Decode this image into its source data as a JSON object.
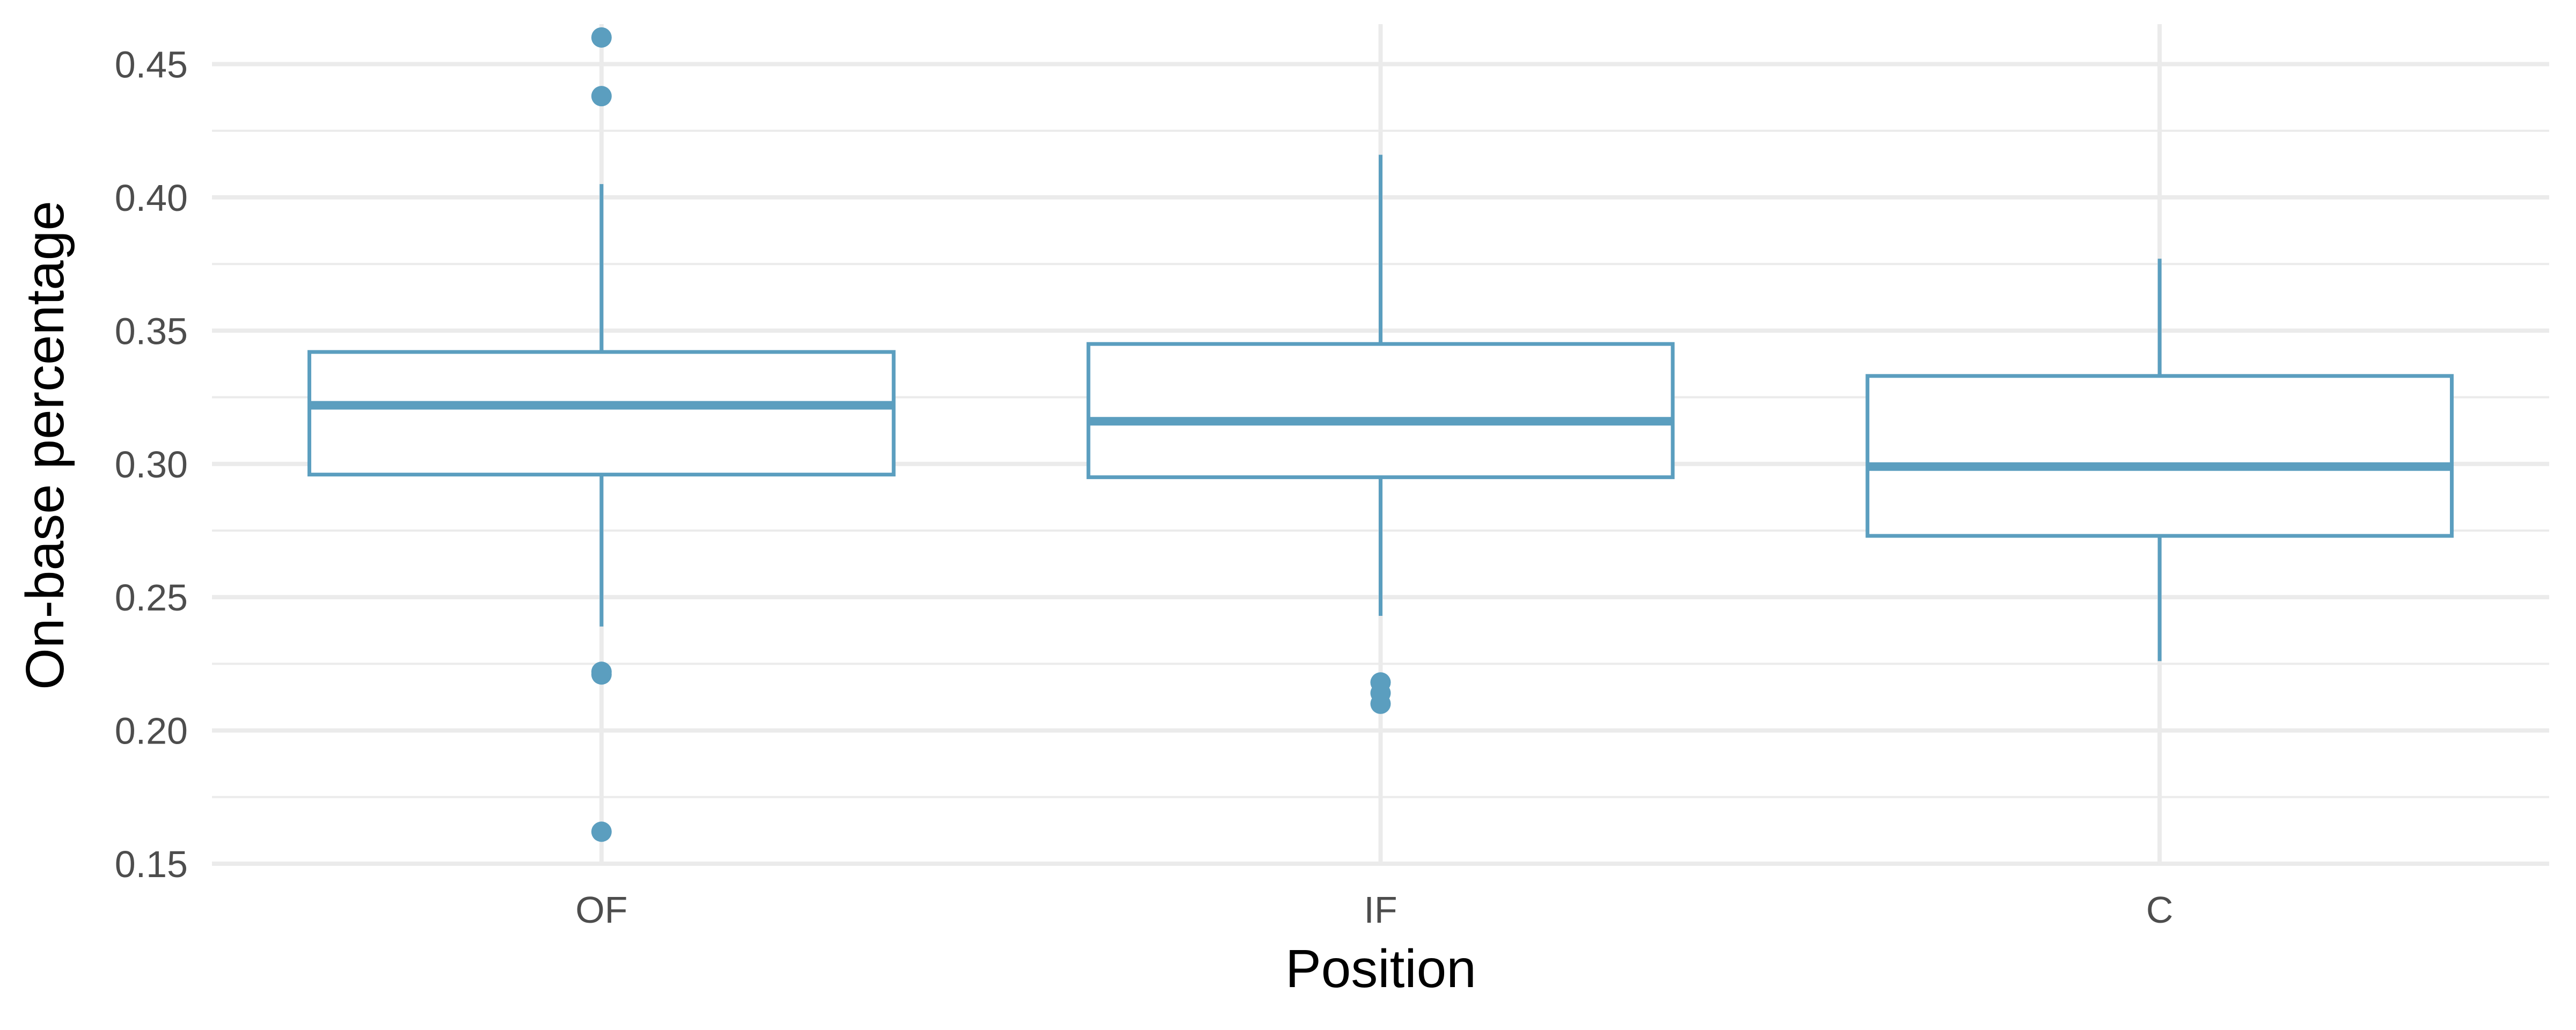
{
  "chart_data": {
    "type": "boxplot",
    "title": "",
    "xlabel": "Position",
    "ylabel": "On-base percentage",
    "ylim": [
      0.15,
      0.465
    ],
    "y_ticks": [
      "0.15",
      "0.20",
      "0.25",
      "0.30",
      "0.35",
      "0.40",
      "0.45"
    ],
    "y_tick_values": [
      0.15,
      0.2,
      0.25,
      0.3,
      0.35,
      0.4,
      0.45
    ],
    "grid": true,
    "legend": "none",
    "color": "#5b9ebf",
    "categories": [
      "OF",
      "IF",
      "C"
    ],
    "boxes": [
      {
        "category": "OF",
        "whisker_low": 0.239,
        "q1": 0.296,
        "median": 0.322,
        "q3": 0.342,
        "whisker_high": 0.405,
        "outliers": [
          0.46,
          0.438,
          0.222,
          0.221,
          0.162
        ]
      },
      {
        "category": "IF",
        "whisker_low": 0.243,
        "q1": 0.295,
        "median": 0.316,
        "q3": 0.345,
        "whisker_high": 0.416,
        "outliers": [
          0.218,
          0.214,
          0.21
        ]
      },
      {
        "category": "C",
        "whisker_low": 0.226,
        "q1": 0.273,
        "median": 0.299,
        "q3": 0.333,
        "whisker_high": 0.377,
        "outliers": []
      }
    ]
  }
}
